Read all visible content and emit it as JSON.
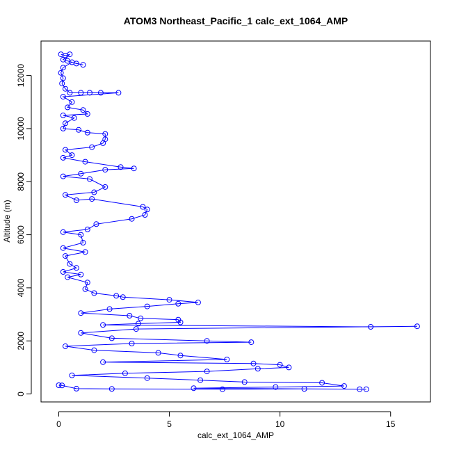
{
  "chart_data": {
    "type": "scatter",
    "title": "ATOM3 Northeast_Pacific_1 calc_ext_1064_AMP",
    "xlabel": "calc_ext_1064_AMP",
    "ylabel": "Altitude (m)",
    "xlim": [
      -0.8,
      16.8
    ],
    "ylim": [
      -300,
      13300
    ],
    "xticks": [
      0,
      5,
      10,
      15
    ],
    "yticks": [
      0,
      2000,
      4000,
      6000,
      8000,
      10000,
      12000
    ],
    "marker": "open-circle",
    "connected": true,
    "series_color": "#0000ff",
    "series": [
      {
        "values": [
          [
            0.1,
            12800
          ],
          [
            0.3,
            12750
          ],
          [
            0.5,
            12800
          ],
          [
            0.2,
            12600
          ],
          [
            0.4,
            12550
          ],
          [
            0.8,
            12450
          ],
          [
            1.1,
            12400
          ],
          [
            0.6,
            12500
          ],
          [
            0.2,
            12300
          ],
          [
            0.1,
            12100
          ],
          [
            0.2,
            11900
          ],
          [
            0.15,
            11700
          ],
          [
            0.3,
            11500
          ],
          [
            0.5,
            11350
          ],
          [
            1.0,
            11350
          ],
          [
            1.4,
            11350
          ],
          [
            1.9,
            11350
          ],
          [
            2.7,
            11350
          ],
          [
            0.2,
            11200
          ],
          [
            0.6,
            11000
          ],
          [
            0.4,
            10800
          ],
          [
            1.1,
            10700
          ],
          [
            1.3,
            10550
          ],
          [
            0.2,
            10500
          ],
          [
            0.7,
            10400
          ],
          [
            0.3,
            10200
          ],
          [
            0.2,
            10000
          ],
          [
            0.9,
            9950
          ],
          [
            1.3,
            9850
          ],
          [
            2.1,
            9800
          ],
          [
            2.1,
            9600
          ],
          [
            2.0,
            9450
          ],
          [
            1.5,
            9300
          ],
          [
            0.3,
            9200
          ],
          [
            0.6,
            9000
          ],
          [
            0.2,
            8900
          ],
          [
            1.2,
            8750
          ],
          [
            2.8,
            8550
          ],
          [
            3.4,
            8500
          ],
          [
            2.1,
            8450
          ],
          [
            1.0,
            8300
          ],
          [
            0.2,
            8200
          ],
          [
            1.4,
            8100
          ],
          [
            2.1,
            7800
          ],
          [
            1.6,
            7600
          ],
          [
            0.3,
            7500
          ],
          [
            0.8,
            7300
          ],
          [
            1.5,
            7350
          ],
          [
            3.8,
            7050
          ],
          [
            4.0,
            6950
          ],
          [
            3.9,
            6750
          ],
          [
            3.3,
            6600
          ],
          [
            1.7,
            6400
          ],
          [
            1.3,
            6200
          ],
          [
            0.2,
            6100
          ],
          [
            1.0,
            6000
          ],
          [
            1.1,
            5700
          ],
          [
            0.2,
            5500
          ],
          [
            1.2,
            5350
          ],
          [
            0.3,
            5200
          ],
          [
            0.5,
            4900
          ],
          [
            0.8,
            4750
          ],
          [
            0.2,
            4600
          ],
          [
            1.0,
            4500
          ],
          [
            0.4,
            4400
          ],
          [
            1.3,
            4200
          ],
          [
            1.2,
            3950
          ],
          [
            1.6,
            3800
          ],
          [
            2.6,
            3700
          ],
          [
            2.9,
            3650
          ],
          [
            5.0,
            3550
          ],
          [
            6.3,
            3450
          ],
          [
            5.4,
            3400
          ],
          [
            4.0,
            3300
          ],
          [
            2.3,
            3200
          ],
          [
            1.0,
            3050
          ],
          [
            3.2,
            2950
          ],
          [
            3.7,
            2850
          ],
          [
            5.4,
            2800
          ],
          [
            5.5,
            2700
          ],
          [
            3.6,
            2650
          ],
          [
            2.0,
            2600
          ],
          [
            14.1,
            2530
          ],
          [
            16.2,
            2550
          ],
          [
            3.5,
            2450
          ],
          [
            1.0,
            2300
          ],
          [
            2.4,
            2100
          ],
          [
            6.7,
            2000
          ],
          [
            8.7,
            1950
          ],
          [
            3.3,
            1900
          ],
          [
            0.3,
            1800
          ],
          [
            1.6,
            1650
          ],
          [
            4.5,
            1550
          ],
          [
            5.5,
            1450
          ],
          [
            7.6,
            1300
          ],
          [
            2.0,
            1200
          ],
          [
            8.8,
            1150
          ],
          [
            10.0,
            1100
          ],
          [
            10.4,
            1000
          ],
          [
            9.0,
            950
          ],
          [
            6.7,
            850
          ],
          [
            3.0,
            780
          ],
          [
            0.6,
            700
          ],
          [
            4.0,
            600
          ],
          [
            6.4,
            520
          ],
          [
            8.4,
            450
          ],
          [
            11.9,
            420
          ],
          [
            12.9,
            300
          ],
          [
            9.8,
            260
          ],
          [
            6.1,
            220
          ],
          [
            13.6,
            180
          ],
          [
            13.9,
            180
          ],
          [
            11.1,
            190
          ],
          [
            7.4,
            180
          ],
          [
            2.4,
            190
          ],
          [
            0.8,
            200
          ],
          [
            0.15,
            320
          ],
          [
            0.0,
            330
          ]
        ]
      }
    ]
  }
}
